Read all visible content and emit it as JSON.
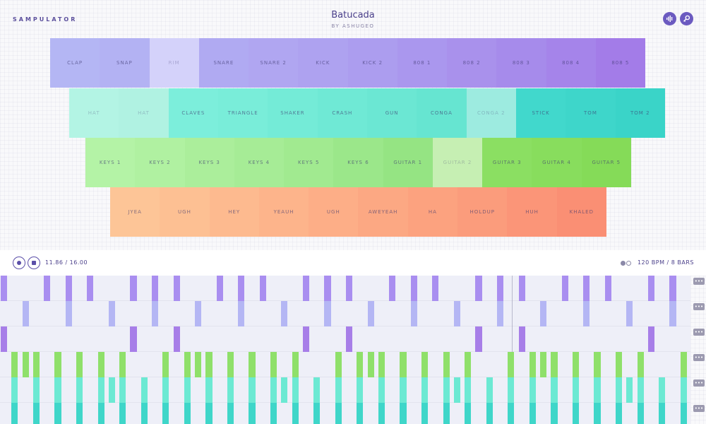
{
  "app": {
    "brand": "SAMPULATOR"
  },
  "song": {
    "title": "Batucada",
    "author": "BY ASHUGEO"
  },
  "header_buttons": [
    {
      "name": "sound-wave-button",
      "icon": "sound-wave-icon"
    },
    {
      "name": "key-button",
      "icon": "key-icon"
    }
  ],
  "pad_rows": [
    {
      "pads": [
        {
          "label": "CLAP",
          "color": "#b4b6f4"
        },
        {
          "label": "SNAP",
          "color": "#b3b2f3"
        },
        {
          "label": "RIM",
          "color": "#d4d2fa",
          "inactive": true
        },
        {
          "label": "SNARE",
          "color": "#b0aaf2"
        },
        {
          "label": "SNARE 2",
          "color": "#b0a6f1"
        },
        {
          "label": "KICK",
          "color": "#aea2f0"
        },
        {
          "label": "KICK 2",
          "color": "#ac9def"
        },
        {
          "label": "808 1",
          "color": "#aa97ee"
        },
        {
          "label": "808 2",
          "color": "#a991ec"
        },
        {
          "label": "808 3",
          "color": "#a68beb"
        },
        {
          "label": "808 4",
          "color": "#a584ea"
        },
        {
          "label": "808 5",
          "color": "#a37ce8"
        }
      ]
    },
    {
      "pads": [
        {
          "label": "HAT",
          "color": "#b3f4e4",
          "inactive": true
        },
        {
          "label": "HAT",
          "color": "#b0f2e2",
          "inactive": true
        },
        {
          "label": "CLAVES",
          "color": "#7ceedb"
        },
        {
          "label": "TRIANGLE",
          "color": "#79edd9"
        },
        {
          "label": "SHAKER",
          "color": "#74ebd7"
        },
        {
          "label": "CRASH",
          "color": "#6fe9d5"
        },
        {
          "label": "GUN",
          "color": "#6be7d3"
        },
        {
          "label": "CONGA",
          "color": "#66e5d1"
        },
        {
          "label": "CONGA 2",
          "color": "#9debe0",
          "inactive": true
        },
        {
          "label": "STICK",
          "color": "#41d8cc"
        },
        {
          "label": "TOM",
          "color": "#3ed6ca"
        },
        {
          "label": "TOM 2",
          "color": "#3ad4c8"
        }
      ]
    },
    {
      "pads": [
        {
          "label": "KEYS 1",
          "color": "#b4f3a6"
        },
        {
          "label": "KEYS 2",
          "color": "#b0f1a1"
        },
        {
          "label": "KEYS 3",
          "color": "#abee9b"
        },
        {
          "label": "KEYS 4",
          "color": "#a6ec96"
        },
        {
          "label": "KEYS 5",
          "color": "#a1ea90"
        },
        {
          "label": "KEYS 6",
          "color": "#9be78a"
        },
        {
          "label": "GUITAR 1",
          "color": "#95e483"
        },
        {
          "label": "GUITAR 2",
          "color": "#c6efb3",
          "inactive": true
        },
        {
          "label": "GUITAR 3",
          "color": "#8bdf62"
        },
        {
          "label": "GUITAR 4",
          "color": "#88dd5d"
        },
        {
          "label": "GUITAR 5",
          "color": "#85db58"
        }
      ]
    },
    {
      "pads": [
        {
          "label": "JYEA",
          "color": "#fdc597"
        },
        {
          "label": "UGH",
          "color": "#fdc093"
        },
        {
          "label": "HEY",
          "color": "#fdba8f"
        },
        {
          "label": "YEAUH",
          "color": "#fdb48b"
        },
        {
          "label": "UGH",
          "color": "#fdae87"
        },
        {
          "label": "AWEYEAH",
          "color": "#fca883"
        },
        {
          "label": "HA",
          "color": "#fca27f"
        },
        {
          "label": "HOLDUP",
          "color": "#fb9c7c"
        },
        {
          "label": "HUH",
          "color": "#fb9578"
        },
        {
          "label": "KHALED",
          "color": "#fa8f74"
        }
      ]
    }
  ],
  "transport": {
    "time": "11.86 / 16.00",
    "tempo": "120 BPM / 8 BARS",
    "position_fraction": 0.741
  },
  "sequencer": {
    "steps": 64,
    "tracks": [
      {
        "name": "808-track",
        "color": "#a98ef0",
        "steps": [
          0,
          4,
          6,
          8,
          12,
          14,
          16,
          20,
          22,
          24,
          28,
          30,
          32,
          36,
          38,
          40,
          44,
          46,
          48,
          52,
          54,
          56,
          60,
          62
        ]
      },
      {
        "name": "snap-track",
        "color": "#b4b6f4",
        "steps": [
          2,
          6,
          10,
          14,
          18,
          22,
          26,
          30,
          34,
          38,
          42,
          46,
          50,
          54,
          58,
          62
        ]
      },
      {
        "name": "808-accent-track",
        "color": "#a77ee8",
        "steps": [
          0,
          12,
          16,
          28,
          32,
          44,
          48,
          60
        ]
      },
      {
        "name": "guitar-track",
        "color": "#8fe06a",
        "steps": [
          1,
          2,
          3,
          5,
          7,
          9,
          11,
          15,
          17,
          18,
          19,
          21,
          23,
          25,
          27,
          31,
          33,
          34,
          35,
          37,
          39,
          41,
          43,
          47,
          49,
          50,
          51,
          53,
          55,
          57,
          59,
          63
        ]
      },
      {
        "name": "tom-track",
        "color": "#6ce9d3",
        "steps": [
          1,
          3,
          5,
          7,
          9,
          10,
          11,
          13,
          15,
          17,
          19,
          21,
          23,
          25,
          26,
          27,
          29,
          31,
          33,
          35,
          37,
          39,
          41,
          42,
          43,
          45,
          47,
          49,
          51,
          53,
          55,
          57,
          58,
          59,
          61,
          63
        ]
      },
      {
        "name": "conga-track",
        "color": "#3fd6c9",
        "steps": [
          1,
          3,
          5,
          7,
          9,
          11,
          13,
          15,
          17,
          19,
          21,
          23,
          25,
          27,
          29,
          31,
          33,
          35,
          37,
          39,
          41,
          43,
          45,
          47,
          49,
          51,
          53,
          55,
          57,
          59,
          61,
          63
        ]
      }
    ]
  }
}
